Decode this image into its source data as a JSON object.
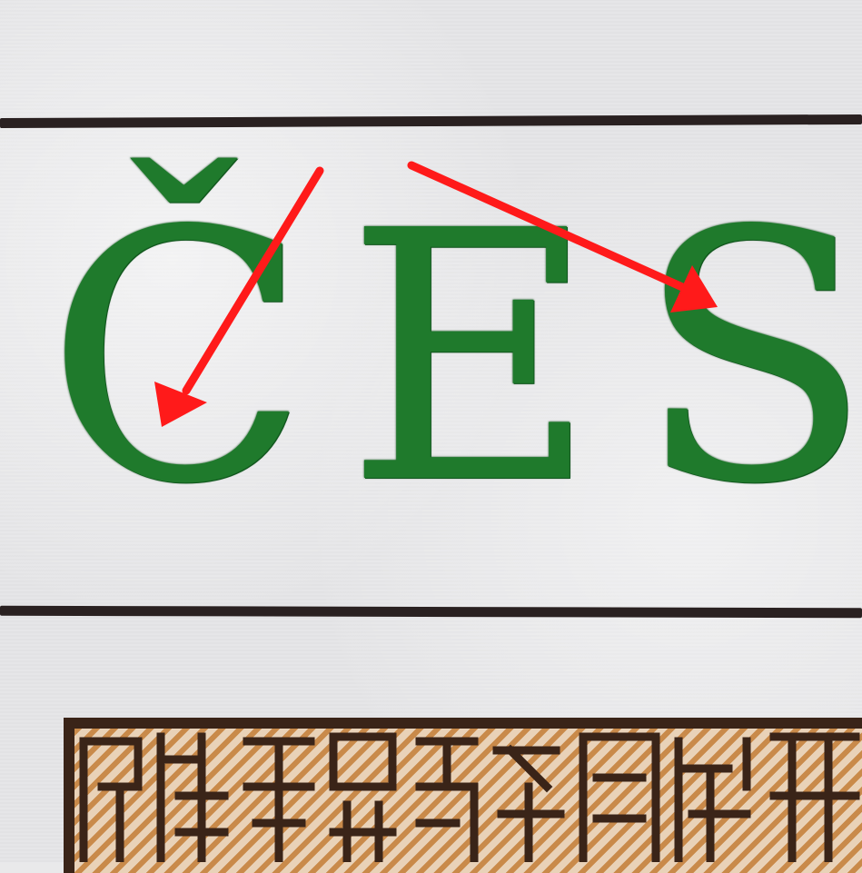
{
  "text": {
    "l1": "Č",
    "l2": "E",
    "l3": "S"
  },
  "colors": {
    "ink_green": "#1f7a2c",
    "rule": "#2a2121",
    "arrow": "#ff1a1a",
    "ornament_dark": "#3a2418",
    "ornament_light": "#c98a4a"
  }
}
